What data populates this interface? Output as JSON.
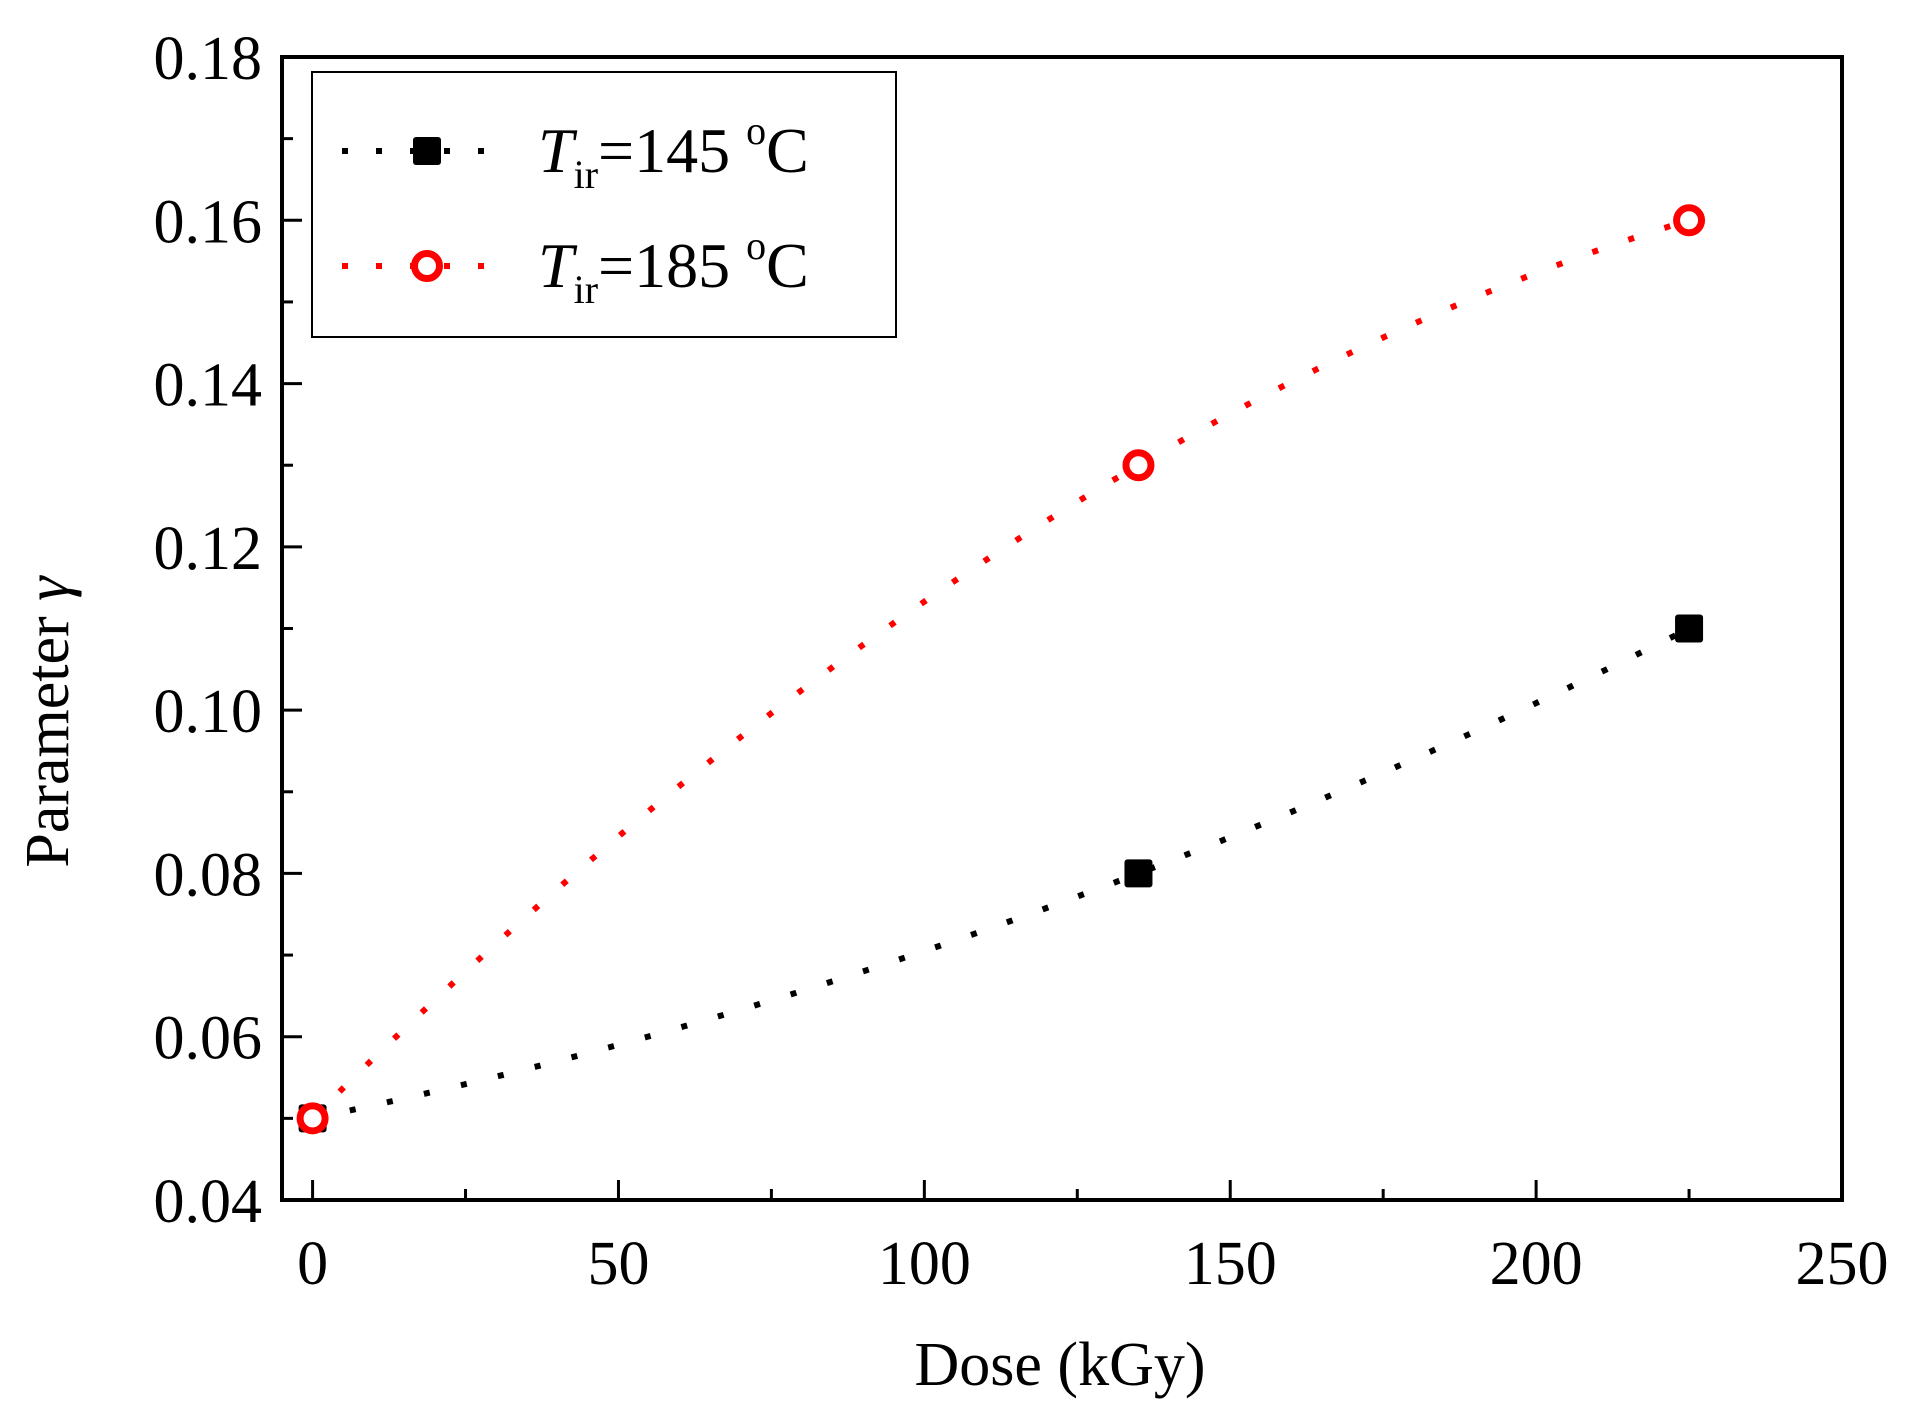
{
  "chart_data": {
    "type": "scatter",
    "title": "",
    "xlabel": "Dose (kGy)",
    "ylabel": "Parameter",
    "ylabel_symbol": "γ",
    "xlim": [
      -5,
      250
    ],
    "ylim": [
      0.04,
      0.18
    ],
    "x_ticks": [
      0,
      50,
      100,
      150,
      200,
      250
    ],
    "x_tick_labels": [
      "0",
      "50",
      "100",
      "150",
      "200",
      "250"
    ],
    "x_minor_step": 25,
    "y_ticks": [
      0.04,
      0.06,
      0.08,
      0.1,
      0.12,
      0.14,
      0.16,
      0.18
    ],
    "y_tick_labels": [
      "0.04",
      "0.06",
      "0.08",
      "0.10",
      "0.12",
      "0.14",
      "0.16",
      "0.18"
    ],
    "y_minor_step": 0.01,
    "grid": false,
    "legend_position": "top-left",
    "series": [
      {
        "name": "T_ir=145 °C",
        "legend_var": "T",
        "legend_sub": "ir",
        "legend_eq": "=145 ",
        "legend_sup": "o",
        "legend_unit": "C",
        "marker": "filled-square",
        "color": "#000000",
        "x": [
          0,
          135,
          225
        ],
        "y": [
          0.05,
          0.08,
          0.11
        ]
      },
      {
        "name": "T_ir=185 °C",
        "legend_var": "T",
        "legend_sub": "ir",
        "legend_eq": "=185 ",
        "legend_sup": "o",
        "legend_unit": "C",
        "marker": "open-circle",
        "color": "#ff0000",
        "x": [
          0,
          135,
          225
        ],
        "y": [
          0.05,
          0.13,
          0.16
        ]
      }
    ]
  }
}
